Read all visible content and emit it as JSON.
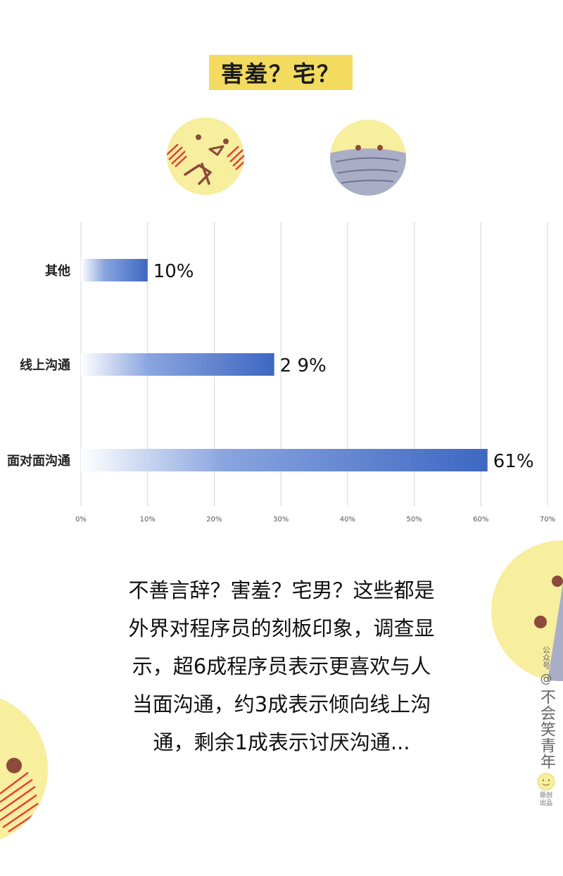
{
  "header": {
    "title": "害羞？宅？"
  },
  "chart_data": {
    "type": "bar",
    "orientation": "horizontal",
    "categories": [
      "其他",
      "线上沟通",
      "面对面沟通"
    ],
    "values": [
      10,
      29,
      61
    ],
    "value_labels": [
      "10%",
      "2 9%",
      "61%"
    ],
    "xlim": [
      0,
      70
    ],
    "x_ticks": [
      "0%",
      "10%",
      "20%",
      "30%",
      "40%",
      "50%",
      "60%",
      "70%"
    ],
    "grid": "vertical",
    "bar_color": "#3d67c2"
  },
  "caption": {
    "lines": [
      "不善言辞？害羞？宅男？这些都是",
      "外界对程序员的刻板印象，调查显",
      "示，超6成程序员表示更喜欢与人",
      "当面沟通，约3成表示倾向线上沟",
      "通，剩余1成表示讨厌沟通..."
    ]
  },
  "watermark": {
    "prefix": "公众号",
    "at": "@",
    "name": "不会笑青年",
    "suffix": "原创出品"
  },
  "colors": {
    "face_yellow": "#f7ee9e",
    "mask_gray": "#a9aec6",
    "eye_brown": "#8b4a3a",
    "blush_red": "#e0403a"
  }
}
